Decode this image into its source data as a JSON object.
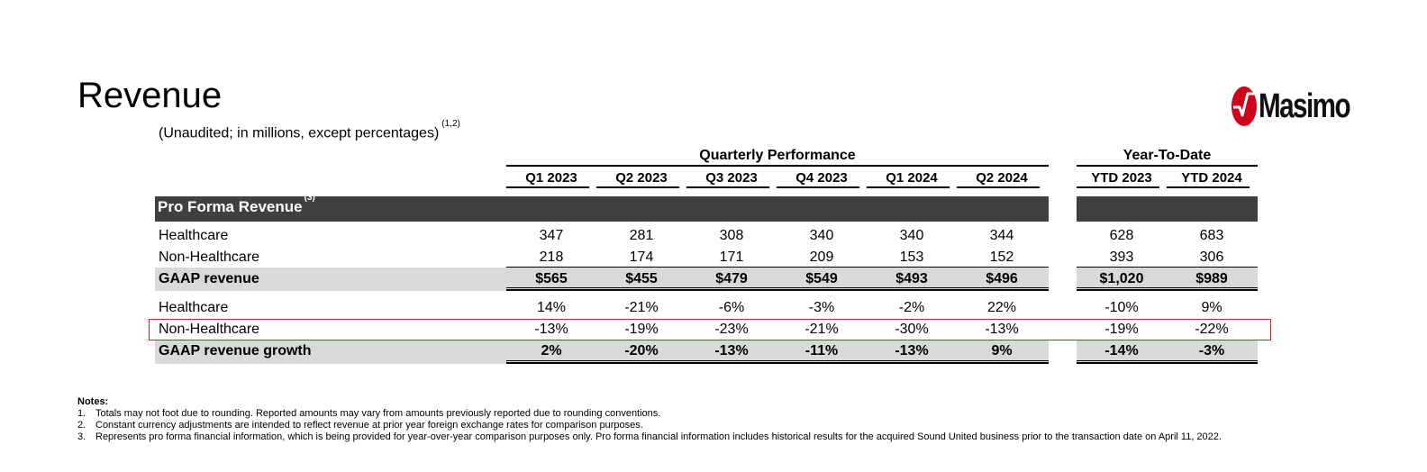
{
  "title": "Revenue",
  "subtitle": "(Unaudited; in millions, except percentages)",
  "subtitle_sup": "(1,2)",
  "logo": {
    "text": "Masimo",
    "brand_color": "#d0021b"
  },
  "groups": {
    "quarterly": "Quarterly Performance",
    "ytd": "Year-To-Date"
  },
  "columns": [
    "Q1 2023",
    "Q2 2023",
    "Q3 2023",
    "Q4 2023",
    "Q1 2024",
    "Q2 2024",
    "YTD 2023",
    "YTD 2024"
  ],
  "section": {
    "label": "Pro Forma Revenue",
    "sup": "(3)"
  },
  "rows": [
    {
      "label": "Healthcare",
      "values": [
        "347",
        "281",
        "308",
        "340",
        "340",
        "344",
        "628",
        "683"
      ]
    },
    {
      "label": "Non-Healthcare",
      "values": [
        "218",
        "174",
        "171",
        "209",
        "153",
        "152",
        "393",
        "306"
      ]
    },
    {
      "label": "GAAP revenue",
      "values": [
        "$565",
        "$455",
        "$479",
        "$549",
        "$493",
        "$496",
        "$1,020",
        "$989"
      ]
    },
    {
      "label": "Healthcare",
      "values": [
        "14%",
        "-21%",
        "-6%",
        "-3%",
        "-2%",
        "22%",
        "-10%",
        "9%"
      ]
    },
    {
      "label": "Non-Healthcare",
      "values": [
        "-13%",
        "-19%",
        "-23%",
        "-21%",
        "-30%",
        "-13%",
        "-19%",
        "-22%"
      ]
    },
    {
      "label": "GAAP revenue growth",
      "values": [
        "2%",
        "-20%",
        "-13%",
        "-11%",
        "-13%",
        "9%",
        "-14%",
        "-3%"
      ]
    }
  ],
  "notes": {
    "title": "Notes:",
    "items": [
      {
        "num": "1.",
        "text": "Totals may not foot due to rounding. Reported amounts may vary from amounts previously reported due to rounding conventions."
      },
      {
        "num": "2.",
        "text": "Constant currency adjustments are intended to reflect revenue at prior year foreign exchange rates for comparison purposes."
      },
      {
        "num": "3.",
        "text": "Represents pro forma financial information, which is being provided for year-over-year comparison purposes only.   Pro forma financial information includes historical results for the acquired Sound United business prior to the transaction date on April 11, 2022."
      }
    ]
  }
}
